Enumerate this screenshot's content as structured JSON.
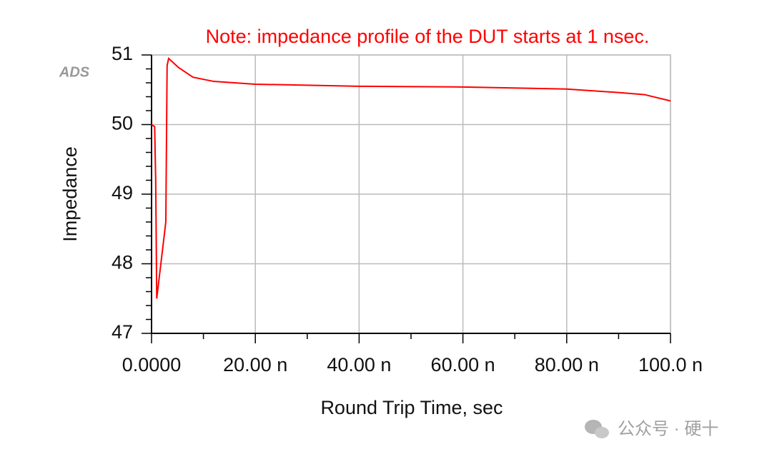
{
  "chart_data": {
    "type": "line",
    "annotation": "Note: impedance profile of the DUT starts at 1 nsec.",
    "logo": "ADS",
    "watermark": "公众号 · 硬十",
    "xlabel": "Round Trip Time, sec",
    "ylabel": "Impedance",
    "x": [
      0,
      6e-10,
      8e-10,
      1e-09,
      2.75e-09,
      3e-09,
      3.3e-09,
      5.2e-09,
      8e-09,
      1.2e-08,
      2e-08,
      4e-08,
      6e-08,
      8e-08,
      9e-08,
      9.5e-08,
      1e-07
    ],
    "values": [
      50.0,
      49.97,
      49.2,
      47.5,
      48.6,
      50.85,
      50.95,
      50.82,
      50.68,
      50.62,
      50.58,
      50.55,
      50.54,
      50.51,
      50.46,
      50.43,
      50.34
    ],
    "color": "#ff0000",
    "xlim": [
      0,
      1e-07
    ],
    "ylim": [
      47,
      51
    ],
    "xticks": [
      {
        "value": 0,
        "label": "0.0000"
      },
      {
        "value": 2e-08,
        "label": "20.00 n"
      },
      {
        "value": 4e-08,
        "label": "40.00 n"
      },
      {
        "value": 6e-08,
        "label": "60.00 n"
      },
      {
        "value": 8e-08,
        "label": "80.00 n"
      },
      {
        "value": 1e-07,
        "label": "100.0 n"
      }
    ],
    "yticks": [
      47,
      48,
      49,
      50,
      51
    ],
    "xminorticks": [
      1e-08,
      3e-08,
      5e-08,
      7e-08,
      9e-08
    ],
    "yminorticks": [
      47.2,
      47.4,
      47.6,
      47.8,
      48.2,
      48.4,
      48.6,
      48.8,
      49.2,
      49.4,
      49.6,
      49.8,
      50.2,
      50.4,
      50.6,
      50.8
    ],
    "grid": true
  }
}
